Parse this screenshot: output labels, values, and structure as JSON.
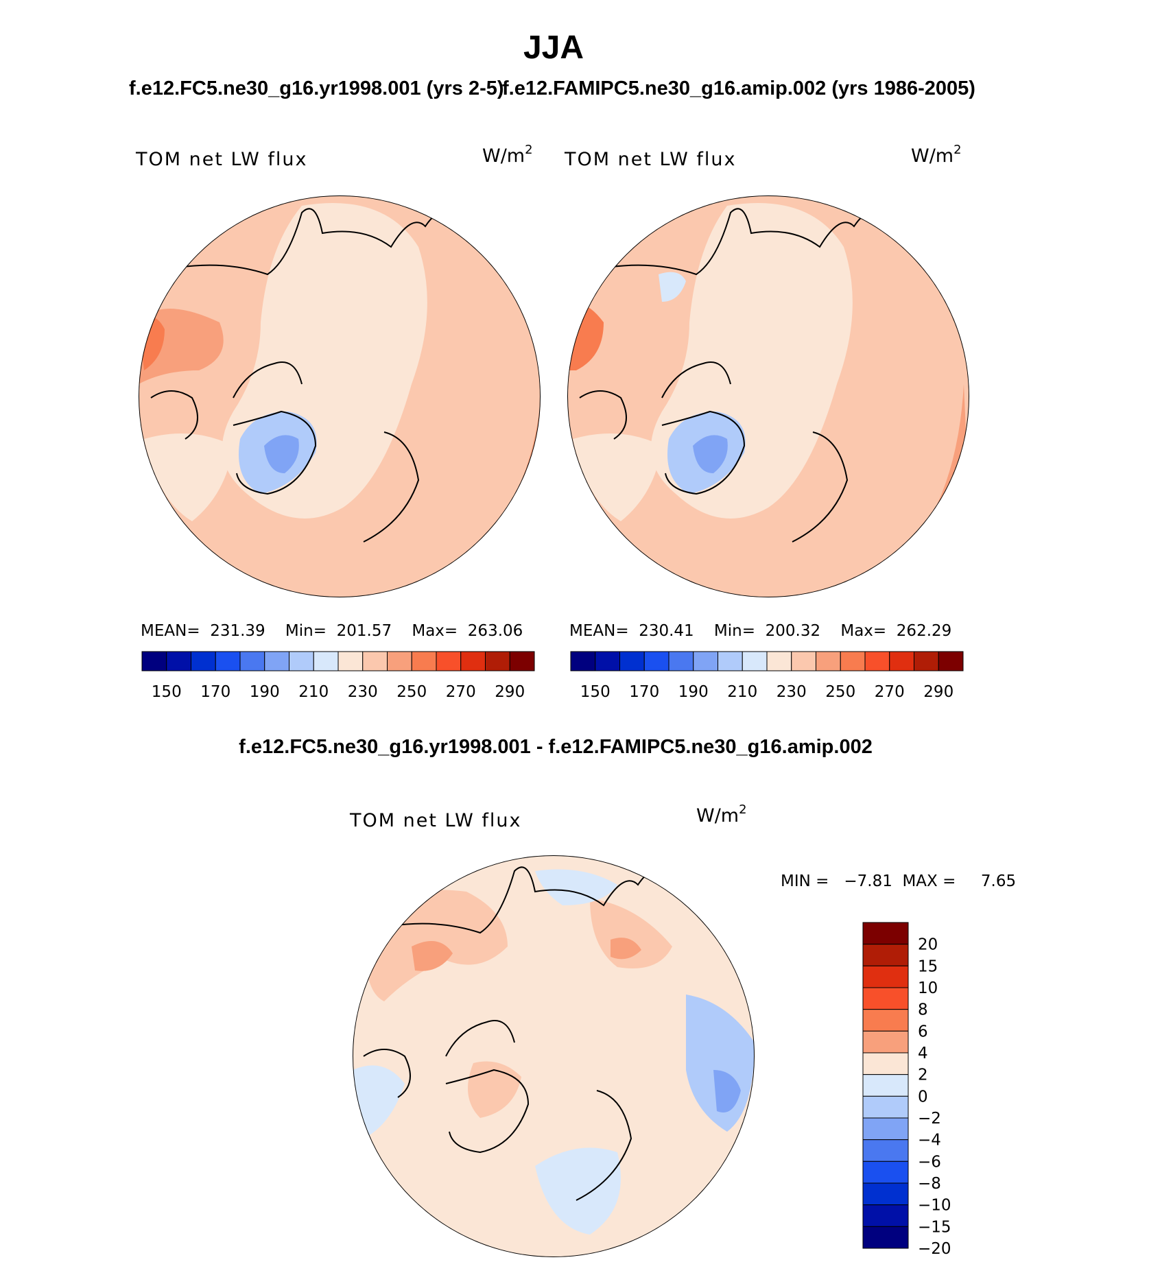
{
  "header": {
    "season": "JJA",
    "left_case": "f.e12.FC5.ne30_g16.yr1998.001 (yrs 2-5)",
    "right_case": "f.e12.FAMIPC5.ne30_g16.amip.002 (yrs 1986-2005)",
    "diff_title": "f.e12.FC5.ne30_g16.yr1998.001 - f.e12.FAMIPC5.ne30_g16.amip.002"
  },
  "panels": [
    {
      "variable": "TOM net LW flux",
      "units_base": "W/m",
      "units_exp": "2",
      "stats": "MEAN=  231.39    Min=  201.57    Max=  263.06"
    },
    {
      "variable": "TOM net LW flux",
      "units_base": "W/m",
      "units_exp": "2",
      "stats": "MEAN=  230.41    Min=  200.32    Max=  262.29"
    },
    {
      "variable": "TOM net LW flux",
      "units_base": "W/m",
      "units_exp": "2",
      "stats": "MIN =   −7.81  MAX =     7.65"
    }
  ],
  "colors": {
    "abs_scale": [
      "#00007f",
      "#0010a8",
      "#0030d0",
      "#1a50f0",
      "#4a78f0",
      "#80a4f5",
      "#b0cbfa",
      "#d8e8fb",
      "#fbe6d6",
      "#fbc8ae",
      "#f8a07c",
      "#f87c4f",
      "#f8502a",
      "#e02f10",
      "#b01d06",
      "#7c0000"
    ],
    "diff_scale": [
      "#7c0000",
      "#b01d06",
      "#e02f10",
      "#f8502a",
      "#f87c4f",
      "#f8a07c",
      "#fbe6d6",
      "#d8e8fb",
      "#b0cbfa",
      "#80a4f5",
      "#4a78f0",
      "#1a50f0",
      "#0030d0",
      "#0010a8",
      "#00007f"
    ]
  },
  "chart_data": [
    {
      "type": "heatmap",
      "projection": "north polar stereographic",
      "title": "TOM net LW flux",
      "units": "W/m2",
      "mean": 231.39,
      "min": 201.57,
      "max": 263.06,
      "colorbar_ticks": [
        "150",
        "170",
        "190",
        "210",
        "230",
        "250",
        "270",
        "290"
      ]
    },
    {
      "type": "heatmap",
      "projection": "north polar stereographic",
      "title": "TOM net LW flux",
      "units": "W/m2",
      "mean": 230.41,
      "min": 200.32,
      "max": 262.29,
      "colorbar_ticks": [
        "150",
        "170",
        "190",
        "210",
        "230",
        "250",
        "270",
        "290"
      ]
    },
    {
      "type": "heatmap",
      "projection": "north polar stereographic",
      "title": "TOM net LW flux",
      "units": "W/m2",
      "min": -7.81,
      "max": 7.65,
      "colorbar_ticks": [
        "20",
        "15",
        "10",
        "8",
        "6",
        "4",
        "2",
        "0",
        "−2",
        "−4",
        "−6",
        "−8",
        "−10",
        "−15",
        "−20"
      ]
    }
  ]
}
